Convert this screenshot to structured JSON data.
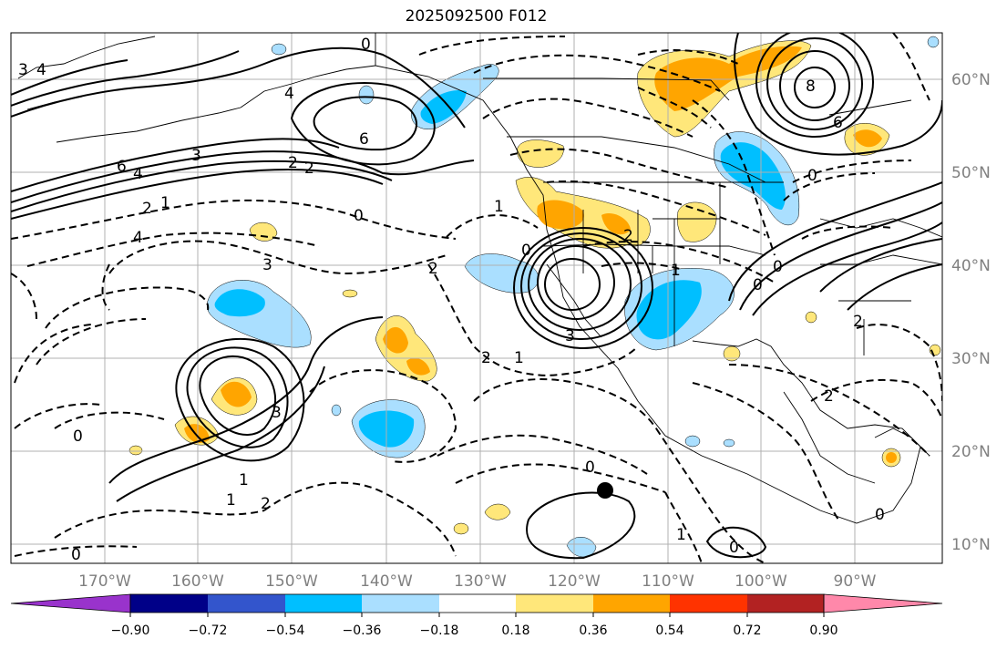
{
  "title": "2025092500 F012",
  "map": {
    "lon_labels": [
      "170°W",
      "160°W",
      "150°W",
      "140°W",
      "130°W",
      "120°W",
      "110°W",
      "100°W",
      "90°W"
    ],
    "lat_labels": [
      "60°N",
      "50°N",
      "40°N",
      "30°N",
      "20°N",
      "10°N"
    ],
    "label_color": "#808080",
    "contour_labels": [
      "0",
      "3",
      "4",
      "4",
      "6",
      "6",
      "8",
      "6",
      "0",
      "3",
      "2",
      "2",
      "1",
      "0",
      "4",
      "2",
      "2",
      "1",
      "0",
      "4",
      "2",
      "1",
      "0",
      "3",
      "2",
      "1",
      "0",
      "3",
      "2",
      "3",
      "1",
      "2",
      "0",
      "2",
      "1",
      "0",
      "0",
      "0",
      "0",
      "1"
    ]
  },
  "colorbar": {
    "ticks": [
      "−0.90",
      "−0.72",
      "−0.54",
      "−0.36",
      "−0.18",
      "0.18",
      "0.36",
      "0.54",
      "0.72",
      "0.90"
    ],
    "colors": [
      "#9933cc",
      "#000088",
      "#3355cc",
      "#00bfff",
      "#aadfff",
      "#ffffff",
      "#ffe77a",
      "#ffa500",
      "#ff3300",
      "#b22222",
      "#ff88aa"
    ]
  }
}
